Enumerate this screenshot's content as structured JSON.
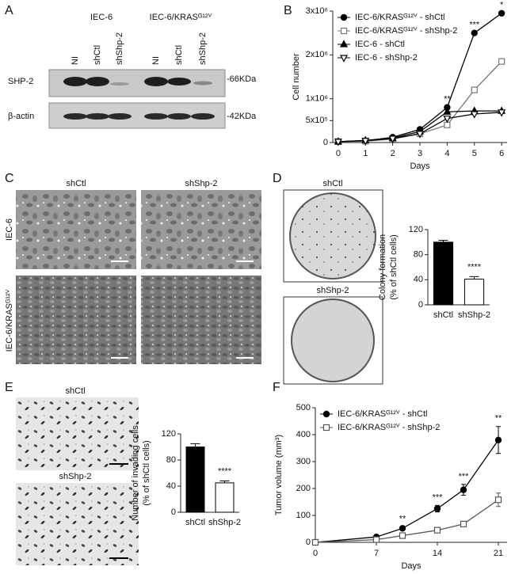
{
  "figure": {
    "panels": [
      "A",
      "B",
      "C",
      "D",
      "E",
      "F"
    ],
    "blot": {
      "groups": [
        "IEC-6",
        "IEC-6/KRASᴳ¹²ⱽ"
      ],
      "lanes": [
        "NI",
        "shCtl",
        "shShp-2",
        "NI",
        "shCtl",
        "shShp-2"
      ],
      "rows": [
        "SHP-2",
        "β-actin"
      ],
      "markers": [
        "-66KDa",
        "-42KDa"
      ]
    },
    "micrographs": {
      "columns": [
        "shCtl",
        "shShp-2"
      ],
      "rows": [
        "IEC-6",
        "IEC-6/KRASᴳ¹²ⱽ"
      ]
    },
    "colony_images": [
      "shCtl",
      "shShp-2"
    ],
    "invasion_images": [
      "shCtl",
      "shShp-2"
    ]
  },
  "chart_data": [
    {
      "type": "line",
      "xlabel": "Days",
      "ylabel": [
        "Cell number"
      ],
      "x": [
        0,
        1,
        2,
        3,
        4,
        5,
        6
      ],
      "xlim": [
        -0.2,
        6.2
      ],
      "xticks": [
        0,
        1,
        2,
        3,
        4,
        5,
        6
      ],
      "ylim": [
        0,
        3000000
      ],
      "yticks": [
        0,
        {
          "value": 500000,
          "label": "5x10⁵"
        },
        {
          "value": 1000000,
          "label": "1x10⁶"
        },
        {
          "value": 2000000,
          "label": "2x10⁶"
        },
        {
          "value": 3000000,
          "label": "3x10⁶"
        }
      ],
      "legend": "upper-left",
      "significance": [
        null,
        null,
        null,
        null,
        "**",
        "***",
        "*"
      ],
      "series": [
        {
          "name": "IEC-6/KRASᴳ¹²ⱽ - shCtl",
          "color": "#000000",
          "marker": "circle",
          "filled": true,
          "values": [
            20000,
            40000,
            120000,
            300000,
            800000,
            2500000,
            2950000
          ]
        },
        {
          "name": "IEC-6/KRASᴳ¹²ⱽ - shShp-2",
          "color": "#777777",
          "marker": "square",
          "filled": false,
          "values": [
            20000,
            30000,
            80000,
            200000,
            400000,
            1200000,
            1850000
          ]
        },
        {
          "name": "IEC-6 - shCtl",
          "color": "#000000",
          "marker": "triangle",
          "filled": true,
          "values": [
            20000,
            50000,
            100000,
            250000,
            700000,
            720000,
            720000
          ]
        },
        {
          "name": "IEC-6 - shShp-2",
          "color": "#000000",
          "marker": "triangle-down",
          "filled": false,
          "values": [
            20000,
            40000,
            90000,
            200000,
            550000,
            650000,
            690000
          ]
        }
      ]
    },
    {
      "type": "bar",
      "ylabel": [
        "Colony formation",
        "(% of shCtl cells)"
      ],
      "categories": [
        "shCtl",
        "shShp-2"
      ],
      "values": [
        100,
        41
      ],
      "errors": [
        3,
        4
      ],
      "colors": [
        "#000000",
        "#ffffff"
      ],
      "significance": [
        null,
        "****"
      ],
      "ylim": [
        0,
        120
      ],
      "yticks": [
        0,
        40,
        80,
        120
      ]
    },
    {
      "type": "bar",
      "ylabel": [
        "Number of invading cells",
        "(% of shCtl cells)"
      ],
      "categories": [
        "shCtl",
        "shShp-2"
      ],
      "values": [
        100,
        45
      ],
      "errors": [
        5,
        3
      ],
      "colors": [
        "#000000",
        "#ffffff"
      ],
      "significance": [
        null,
        "****"
      ],
      "ylim": [
        0,
        120
      ],
      "yticks": [
        0,
        40,
        80,
        120
      ]
    },
    {
      "type": "line",
      "xlabel": "Days",
      "ylabel": [
        "Tumor volume (mm³)"
      ],
      "x": [
        0,
        7,
        10,
        14,
        17,
        21
      ],
      "xlim": [
        0,
        22
      ],
      "xticks": [
        0,
        7,
        14,
        21
      ],
      "ylim": [
        0,
        500
      ],
      "yticks": [
        0,
        100,
        200,
        300,
        400,
        500
      ],
      "legend": "upper-left",
      "significance": [
        null,
        null,
        "**",
        "***",
        "***",
        "**"
      ],
      "series": [
        {
          "name": "IEC-6/KRASᴳ¹²ⱽ - shCtl",
          "color": "#000000",
          "marker": "circle",
          "filled": true,
          "values": [
            0,
            20,
            52,
            125,
            195,
            380
          ],
          "errors": [
            0,
            3,
            5,
            12,
            20,
            50
          ]
        },
        {
          "name": "IEC-6/KRASᴳ¹²ⱽ - shShp-2",
          "color": "#555555",
          "marker": "square",
          "filled": false,
          "values": [
            0,
            10,
            25,
            45,
            68,
            158
          ],
          "errors": [
            0,
            2,
            3,
            6,
            10,
            25
          ]
        }
      ]
    }
  ]
}
